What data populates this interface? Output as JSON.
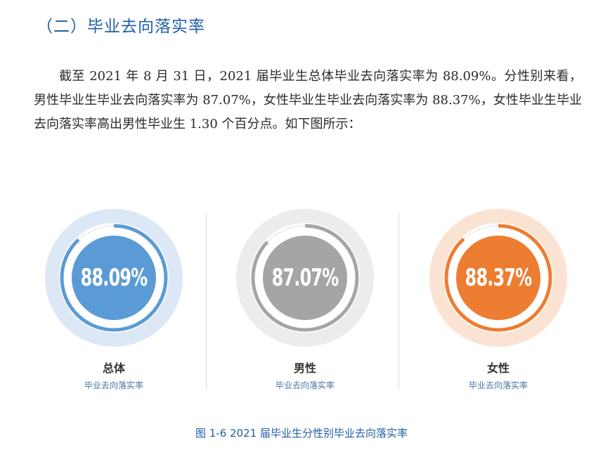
{
  "heading": "（二）毕业去向落实率",
  "paragraph": "截至 2021 年 8 月 31 日，2021 届毕业生总体毕业去向落实率为 88.09%。分性别来看，男性毕业生毕业去向落实率为 87.07%，女性毕业生毕业去向落实率为 88.37%，女性毕业生毕业去向落实率高出男性毕业生 1.30 个百分点。如下图所示：",
  "charts": [
    {
      "value_label": "88.09%",
      "value": 88.09,
      "name": "总体",
      "sub": "毕业去向落实率",
      "colors": {
        "outer": "#dce8f6",
        "ring_bg": "#ffffff",
        "ring": "#5b9bd5",
        "inner": "#5b9bd5"
      }
    },
    {
      "value_label": "87.07%",
      "value": 87.07,
      "name": "男性",
      "sub": "毕业去向落实率",
      "colors": {
        "outer": "#ececec",
        "ring_bg": "#ffffff",
        "ring": "#a5a5a5",
        "inner": "#a5a5a5"
      }
    },
    {
      "value_label": "88.37%",
      "value": 88.37,
      "name": "女性",
      "sub": "毕业去向落实率",
      "colors": {
        "outer": "#fbe3d3",
        "ring_bg": "#ffffff",
        "ring": "#ed7d31",
        "inner": "#ed7d31"
      }
    }
  ],
  "caption": "图 1-6 2021 届毕业生分性别毕业去向落实率"
}
